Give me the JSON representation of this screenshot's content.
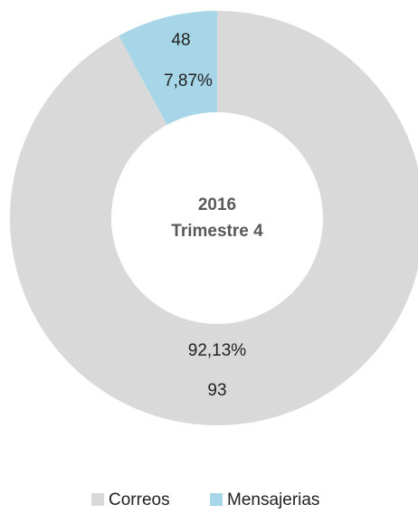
{
  "chart_data": {
    "type": "donut",
    "center_label": [
      "2016",
      "Trimestre 4"
    ],
    "categories": [
      "Correos",
      "Mensajerias"
    ],
    "values": [
      92.13,
      7.87
    ],
    "value_labels": [
      "92,13%",
      "7,87%"
    ],
    "counts": [
      93,
      48
    ],
    "colors": [
      "#d9d9d9",
      "#a6d6e8"
    ],
    "legend": "bottom"
  }
}
